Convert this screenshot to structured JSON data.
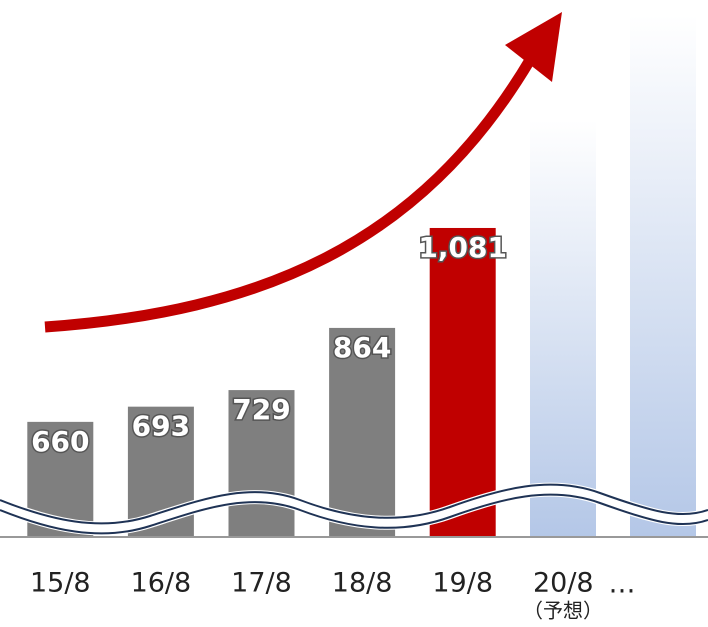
{
  "chart_data": {
    "type": "bar",
    "categories": [
      "15/8",
      "16/8",
      "17/8",
      "18/8",
      "19/8",
      "20/8",
      null
    ],
    "values": [
      660,
      693,
      729,
      864,
      1081,
      null,
      null
    ],
    "value_labels": [
      "660",
      "693",
      "729",
      "864",
      "1,081",
      null,
      null
    ],
    "colors": [
      "#7f7f7f",
      "#7f7f7f",
      "#7f7f7f",
      "#7f7f7f",
      "#c00000",
      null,
      null
    ],
    "ylim": [
      410,
      1576
    ],
    "annotations": [
      "…",
      "（予想）"
    ]
  }
}
